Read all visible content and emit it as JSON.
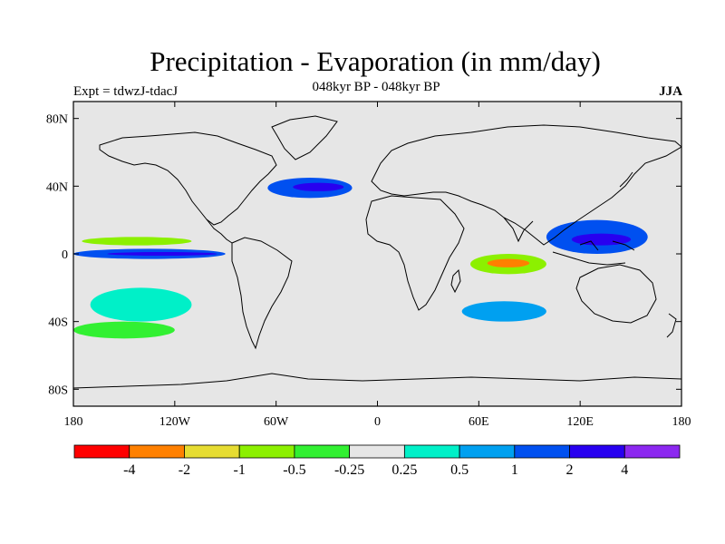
{
  "title": "Precipitation - Evaporation (in mm/day)",
  "subtitle_center": "048kyr BP - 048kyr BP",
  "subtitle_left": "Expt = tdwzJ-tdacJ",
  "subtitle_right": "JJA",
  "map": {
    "projection": "cylindrical-equidistant",
    "background_color": "#e6e6e6",
    "lon_ticks": [
      "180",
      "120W",
      "60W",
      "0",
      "60E",
      "120E",
      "180"
    ],
    "lat_ticks": [
      "80N",
      "40N",
      "0",
      "40S",
      "80S"
    ],
    "lon_tick_values": [
      -180,
      -120,
      -60,
      0,
      60,
      120,
      180
    ],
    "lat_tick_values": [
      80,
      40,
      0,
      -40,
      -80
    ]
  },
  "colorbar": {
    "colors": [
      "#ff0000",
      "#ff8000",
      "#e6dc32",
      "#8cf000",
      "#32f032",
      "#e6e6e6",
      "#00f0c8",
      "#00a0f0",
      "#0050f0",
      "#2800f0",
      "#8c28f0"
    ],
    "labels": [
      "-4",
      "-2",
      "-1",
      "-0.5",
      "-0.25",
      "0.25",
      "0.5",
      "1",
      "2",
      "4"
    ]
  },
  "chart_data": {
    "type": "heatmap",
    "title": "Precipitation - Evaporation (in mm/day)",
    "subtitle": "048kyr BP - 048kyr BP",
    "variable": "Precipitation - Evaporation",
    "units": "mm/day",
    "season": "JJA",
    "levels": [
      -4,
      -2,
      -1,
      -0.5,
      -0.25,
      0.25,
      0.5,
      1,
      2,
      4
    ],
    "xlim": [
      -180,
      180
    ],
    "ylim": [
      -90,
      90
    ],
    "regions": [
      {
        "lon": [
          -180,
          -95
        ],
        "lat": [
          4,
          12
        ],
        "band": 5
      },
      {
        "lon": [
          -175,
          -110
        ],
        "lat": [
          5,
          10
        ],
        "band": 3
      },
      {
        "lon": [
          -180,
          -90
        ],
        "lat": [
          -3,
          3
        ],
        "band": 8
      },
      {
        "lon": [
          -160,
          -95
        ],
        "lat": [
          -1,
          1
        ],
        "band": 9
      },
      {
        "lon": [
          -65,
          -15
        ],
        "lat": [
          33,
          45
        ],
        "band": 8
      },
      {
        "lon": [
          -50,
          -20
        ],
        "lat": [
          37,
          42
        ],
        "band": 9
      },
      {
        "lon": [
          55,
          100
        ],
        "lat": [
          -12,
          0
        ],
        "band": 3
      },
      {
        "lon": [
          65,
          90
        ],
        "lat": [
          -8,
          -3
        ],
        "band": 1
      },
      {
        "lon": [
          100,
          160
        ],
        "lat": [
          0,
          20
        ],
        "band": 8
      },
      {
        "lon": [
          115,
          150
        ],
        "lat": [
          5,
          12
        ],
        "band": 9
      },
      {
        "lon": [
          -170,
          -110
        ],
        "lat": [
          -40,
          -20
        ],
        "band": 6
      },
      {
        "lon": [
          50,
          100
        ],
        "lat": [
          -40,
          -28
        ],
        "band": 7
      },
      {
        "lon": [
          -180,
          -120
        ],
        "lat": [
          -50,
          -40
        ],
        "band": 4
      }
    ]
  }
}
